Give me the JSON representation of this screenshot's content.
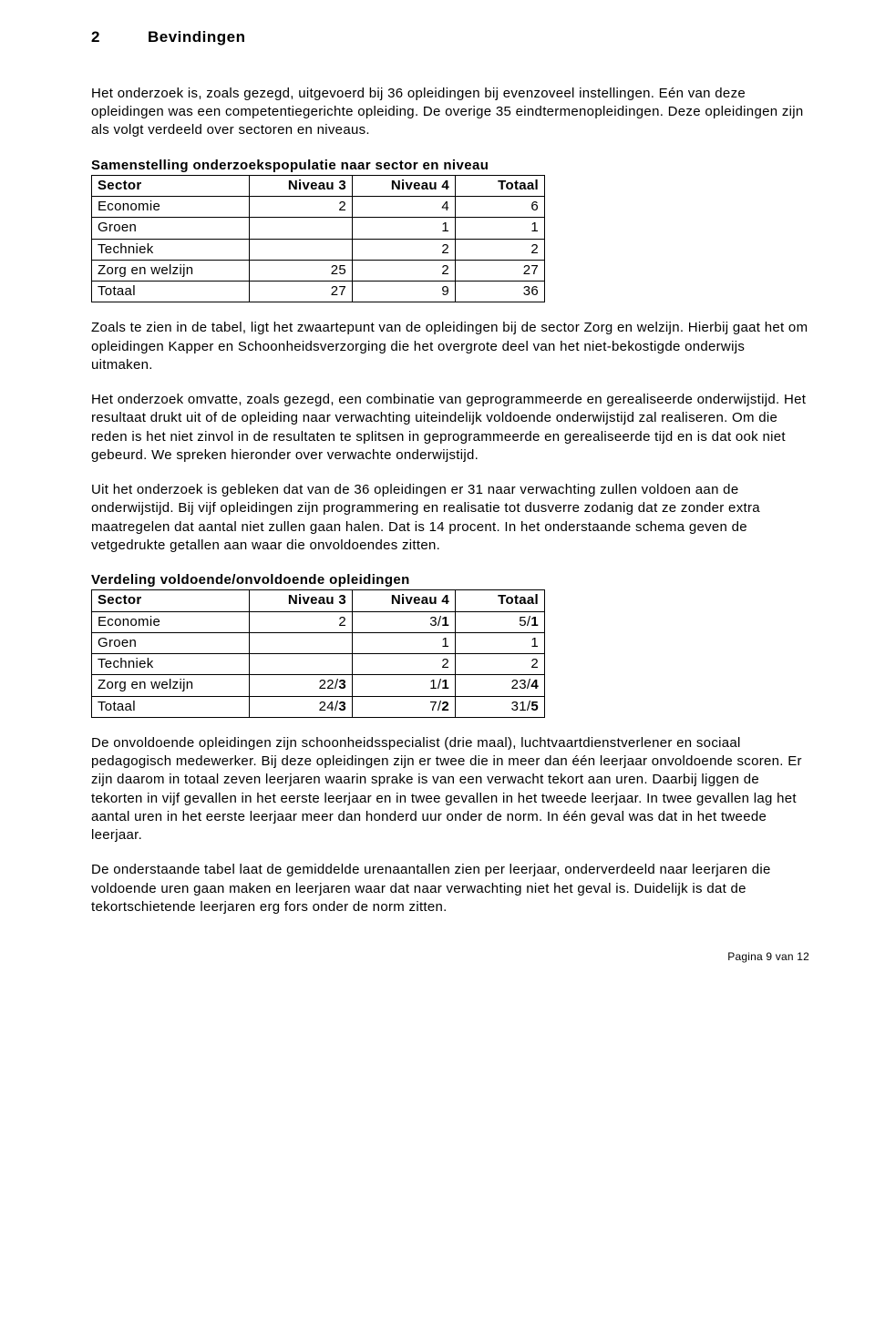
{
  "heading": {
    "num": "2",
    "title": "Bevindingen"
  },
  "para1": "Het onderzoek is, zoals gezegd, uitgevoerd bij 36 opleidingen bij evenzoveel instellingen. Eén van deze opleidingen was een competentiegerichte opleiding. De overige 35 eindtermenopleidingen. Deze opleidingen zijn als volgt verdeeld over sectoren en niveaus.",
  "table1": {
    "title": "Samenstelling onderzoekspopulatie naar sector en niveau",
    "headers": [
      "Sector",
      "Niveau 3",
      "Niveau 4",
      "Totaal"
    ],
    "rows": [
      {
        "label": "Economie",
        "n3": "2",
        "n4": "4",
        "tot": "6"
      },
      {
        "label": "Groen",
        "n3": "",
        "n4": "1",
        "tot": "1"
      },
      {
        "label": "Techniek",
        "n3": "",
        "n4": "2",
        "tot": "2"
      },
      {
        "label": "Zorg en welzijn",
        "n3": "25",
        "n4": "2",
        "tot": "27"
      },
      {
        "label": "Totaal",
        "n3": "27",
        "n4": "9",
        "tot": "36"
      }
    ]
  },
  "para2": "Zoals te zien in de tabel, ligt het zwaartepunt van de opleidingen bij de sector Zorg en welzijn. Hierbij gaat het om opleidingen Kapper en Schoonheidsverzorging die het overgrote deel van het niet-bekostigde onderwijs uitmaken.",
  "para3": "Het onderzoek omvatte, zoals gezegd, een combinatie van geprogrammeerde en gerealiseerde onderwijstijd. Het resultaat drukt uit of de opleiding naar verwachting uiteindelijk voldoende onderwijstijd zal realiseren. Om die reden is het niet zinvol in de resultaten te splitsen in geprogrammeerde en gerealiseerde tijd en is dat ook niet gebeurd. We spreken hieronder over verwachte onderwijstijd.",
  "para4": "Uit het onderzoek is gebleken dat van de 36 opleidingen er 31 naar verwachting zullen voldoen aan de onderwijstijd. Bij vijf opleidingen zijn programmering en realisatie tot dusverre zodanig dat ze zonder extra maatregelen dat aantal niet zullen gaan halen. Dat is 14 procent. In het onderstaande schema geven de vetgedrukte getallen aan waar die onvoldoendes zitten.",
  "table2": {
    "title": "Verdeling voldoende/onvoldoende opleidingen",
    "headers": [
      "Sector",
      "Niveau 3",
      "Niveau 4",
      "Totaal"
    ],
    "rows": [
      {
        "label": "Economie",
        "n3": {
          "a": "2",
          "b": ""
        },
        "n4": {
          "a": "3/",
          "b": "1"
        },
        "tot": {
          "a": "5/",
          "b": "1"
        }
      },
      {
        "label": "Groen",
        "n3": {
          "a": "",
          "b": ""
        },
        "n4": {
          "a": "1",
          "b": ""
        },
        "tot": {
          "a": "1",
          "b": ""
        }
      },
      {
        "label": "Techniek",
        "n3": {
          "a": "",
          "b": ""
        },
        "n4": {
          "a": "2",
          "b": ""
        },
        "tot": {
          "a": "2",
          "b": ""
        }
      },
      {
        "label": "Zorg en welzijn",
        "n3": {
          "a": "22/",
          "b": "3"
        },
        "n4": {
          "a": "1/",
          "b": "1"
        },
        "tot": {
          "a": "23/",
          "b": "4"
        }
      },
      {
        "label": "Totaal",
        "n3": {
          "a": "24/",
          "b": "3"
        },
        "n4": {
          "a": "7/",
          "b": "2"
        },
        "tot": {
          "a": "31/",
          "b": "5"
        }
      }
    ]
  },
  "para5": "De onvoldoende opleidingen zijn schoonheidsspecialist (drie maal), luchtvaartdienstverlener en sociaal pedagogisch medewerker. Bij deze opleidingen zijn er twee die in meer dan één leerjaar onvoldoende scoren. Er zijn daarom in totaal zeven leerjaren waarin sprake is van een verwacht tekort aan uren. Daarbij liggen de tekorten in vijf gevallen in het eerste leerjaar en in twee gevallen in het tweede leerjaar. In twee gevallen lag het aantal uren in het eerste leerjaar meer dan honderd uur onder de norm. In één geval was dat in het tweede leerjaar.",
  "para6": "De onderstaande tabel laat de gemiddelde urenaantallen zien per leerjaar, onderverdeeld naar leerjaren die voldoende uren gaan maken en leerjaren waar dat naar verwachting niet het geval is. Duidelijk is dat de tekortschietende leerjaren erg fors onder de norm zitten.",
  "footer": "Pagina 9 van 12"
}
